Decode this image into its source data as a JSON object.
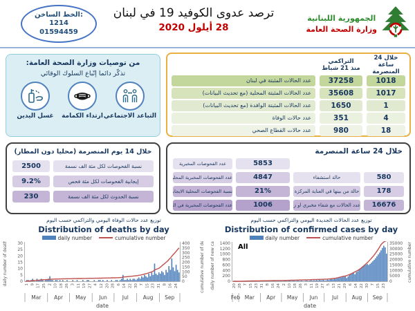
{
  "header": {
    "hotline": {
      "label": "الخط الساخن:",
      "number1": "1214",
      "number2": "01594459"
    },
    "title": "ترصد عدوى الكوفيد 19 في لبنان",
    "date": "28 أيلول 2020",
    "ministry": {
      "line1": "الجمهورية اللبنانية",
      "line2": "وزارة الصحة العامة"
    }
  },
  "recommendations": {
    "title": "من توصيات وزارة الصحة العامة:",
    "subtitle": "تذكّر دائما إتّباع السلوك الوقائي",
    "items": [
      {
        "icon": "hand-washing-icon",
        "label": "غسل اليدين"
      },
      {
        "icon": "face-mask-icon",
        "label": "ارتداء الكمامة"
      },
      {
        "icon": "social-distancing-icon",
        "label": "التباعد الاجتماعي"
      }
    ]
  },
  "main_table": {
    "col_24h_l1": "خلال 24 ساعة",
    "col_24h_l2": "المنصرمة",
    "col_cum_l1": "التراكمي",
    "col_cum_l2": "منذ 21 شباط",
    "rows": [
      {
        "label": "عدد الحالات المثبتة في لبنان",
        "cumulative": "37258",
        "last24": "1018"
      },
      {
        "label": "عدد الحالات المثبتة المحلية (مع تحديث البيانات)",
        "cumulative": "35608",
        "last24": "1017"
      },
      {
        "label": "عدد الحالات المثبتة الوافدة (مع تحديث البيانات)",
        "cumulative": "1650",
        "last24": "1"
      },
      {
        "label": "عدد حالات الوفاة",
        "cumulative": "351",
        "last24": "4"
      },
      {
        "label": "عدد حالات القطاع الصحي",
        "cumulative": "980",
        "last24": "18"
      }
    ]
  },
  "fortnight_box": {
    "title": "خلال 14 يوم المنصرمة (محليا دون المطار)",
    "rows": [
      {
        "value": "2500",
        "label": "نسبة الفحوصات لكل مئة الف نسمة"
      },
      {
        "value": "9.2%",
        "label": "إيجابية الفحوصات لكل مئة فحص"
      },
      {
        "value": "230",
        "label": "نسبة الحدوث لكل مئة الف نسمة"
      }
    ]
  },
  "day_box": {
    "title": "خلال 24 ساعة المنصرمة",
    "left_rows": [
      {
        "label": "عدد الفحوصات المخبرية",
        "value": "5853"
      },
      {
        "label": "عدد الفحوصات المخبرية المحلية",
        "value": "4847"
      },
      {
        "label": "نسبة الفحوصات المحلية الايجابية",
        "value": "21%"
      },
      {
        "label": "عدد الفحوصات المخبرية في المطار",
        "value": "1006"
      }
    ],
    "right_rows": [
      {
        "label": "حالة استشفاء",
        "value": "580"
      },
      {
        "label": "حالة من بينها في العناية المركزة",
        "value": "178"
      },
      {
        "label": "عدد الحالات مع شفاء مخبري او زمني",
        "value": "16676"
      }
    ]
  },
  "chart_data": [
    {
      "type": "bar",
      "title_ar": "توزيع عدد حالات الوفاة اليومي والتراكمي حسب اليوم",
      "title_en": "Distribution of deaths by day",
      "legend": [
        "daily number",
        "cumulative number"
      ],
      "ylabel_left": "daily number of deaths",
      "ylabel_right": "cumulative number of deaths",
      "xlabel": "date",
      "ylim_left": [
        0,
        30
      ],
      "ystep_left": 5,
      "ylim_right": [
        0,
        400
      ],
      "ystep_right": 50,
      "months": [
        "Mar",
        "Apr",
        "May",
        "Jun",
        "Jul",
        "Aug",
        "Sep"
      ],
      "month_weights": [
        31,
        30,
        31,
        30,
        31,
        31,
        28
      ],
      "day_ticks": [
        "1",
        "9",
        "17",
        "25",
        "2",
        "10",
        "18",
        "26",
        "3",
        "11",
        "19",
        "27",
        "4",
        "12",
        "20",
        "28",
        "6",
        "14",
        "22",
        "30",
        "7",
        "15",
        "23",
        "31",
        "8",
        "16",
        "24"
      ],
      "daily": [
        0,
        1,
        1,
        0,
        1,
        2,
        1,
        0,
        2,
        1,
        1,
        2,
        1,
        0,
        1,
        1,
        2,
        4,
        1,
        1,
        0,
        1,
        1,
        0,
        1,
        0,
        1,
        0,
        0,
        1,
        0,
        0,
        0,
        1,
        0,
        0,
        1,
        0,
        0,
        0,
        1,
        0,
        0,
        1,
        1,
        0,
        0,
        0,
        1,
        0,
        0,
        1,
        1,
        0,
        1,
        0,
        0,
        1,
        0,
        0,
        1,
        0,
        0,
        1,
        1,
        0,
        1,
        2,
        5,
        1,
        1,
        2,
        1,
        2,
        1,
        2,
        2,
        1,
        2,
        3,
        2,
        4,
        3,
        5,
        4,
        3,
        6,
        4,
        7,
        5,
        14,
        6,
        5,
        7,
        6,
        8,
        7,
        5,
        9,
        7,
        12,
        9,
        18,
        11,
        8,
        13,
        9,
        7
      ],
      "cumulative": [
        1,
        2,
        3,
        4,
        5,
        7,
        8,
        9,
        11,
        12,
        13,
        15,
        16,
        16,
        17,
        18,
        19,
        21,
        22,
        23,
        23,
        24,
        24,
        24,
        25,
        25,
        26,
        26,
        26,
        27,
        27,
        27,
        27,
        28,
        28,
        28,
        29,
        29,
        29,
        29,
        30,
        30,
        30,
        31,
        31,
        31,
        31,
        31,
        32,
        32,
        32,
        33,
        33,
        33,
        34,
        34,
        34,
        35,
        35,
        35,
        36,
        36,
        36,
        37,
        38,
        38,
        39,
        41,
        45,
        46,
        47,
        49,
        50,
        52,
        53,
        55,
        57,
        58,
        60,
        63,
        65,
        69,
        72,
        77,
        81,
        84,
        90,
        94,
        101,
        106,
        120,
        126,
        131,
        138,
        150,
        163,
        176,
        187,
        201,
        214,
        230,
        245,
        266,
        283,
        298,
        317,
        335,
        351
      ]
    },
    {
      "type": "bar",
      "title_ar": "توزيع عدد الحالات الجديدة اليومي والتراكمي حسب اليوم",
      "title_en": "Distribution of confirmed cases by day",
      "annotation": "All",
      "legend": [
        "daily number",
        "cumulative number"
      ],
      "ylabel_left": "daily number of new cases",
      "ylabel_right": "cumulative number",
      "xlabel": "date",
      "ylim_left": [
        0,
        1400
      ],
      "ystep_left": 200,
      "ylim_right": [
        0,
        35000
      ],
      "ystep_right": 5000,
      "months": [
        "Feb",
        "Mar",
        "Apr",
        "May",
        "Jun",
        "Jul",
        "Aug",
        "Sep"
      ],
      "month_weights": [
        9,
        31,
        30,
        31,
        30,
        31,
        31,
        28
      ],
      "day_ticks": [
        "20",
        "28",
        "7",
        "15",
        "23",
        "31",
        "8",
        "16",
        "24",
        "2",
        "10",
        "18",
        "26",
        "3",
        "11",
        "19",
        "27",
        "5",
        "13",
        "21",
        "29",
        "6",
        "14",
        "22",
        "30",
        "7",
        "15",
        "23"
      ],
      "daily": [
        1,
        2,
        2,
        3,
        2,
        4,
        6,
        9,
        11,
        13,
        15,
        12,
        14,
        10,
        12,
        9,
        11,
        8,
        10,
        7,
        9,
        8,
        10,
        6,
        9,
        12,
        8,
        10,
        7,
        9,
        11,
        8,
        6,
        9,
        7,
        10,
        6,
        9,
        26,
        12,
        8,
        30,
        14,
        10,
        25,
        18,
        12,
        35,
        20,
        15,
        28,
        11,
        10,
        20,
        30,
        15,
        25,
        40,
        20,
        35,
        25,
        45,
        30,
        50,
        38,
        42,
        55,
        25,
        35,
        60,
        45,
        80,
        95,
        70,
        110,
        90,
        132,
        120,
        155,
        140,
        175,
        168,
        182,
        120,
        180,
        230,
        255,
        290,
        310,
        255,
        340,
        365,
        420,
        455,
        510,
        560,
        580,
        610,
        640,
        600,
        640,
        690,
        740,
        790,
        850,
        920,
        990,
        1060,
        1140,
        1230,
        1310,
        1250,
        1018
      ],
      "cumulative": [
        2,
        8,
        15,
        25,
        40,
        60,
        90,
        120,
        150,
        180,
        210,
        240,
        265,
        290,
        310,
        330,
        350,
        370,
        390,
        410,
        440,
        460,
        480,
        500,
        520,
        540,
        560,
        580,
        600,
        620,
        640,
        660,
        680,
        700,
        715,
        725,
        740,
        760,
        790,
        820,
        850,
        890,
        930,
        960,
        990,
        1020,
        1060,
        1100,
        1140,
        1180,
        1210,
        1220,
        1250,
        1290,
        1330,
        1380,
        1430,
        1480,
        1530,
        1580,
        1620,
        1660,
        1700,
        1730,
        1760,
        1790,
        1820,
        1880,
        1950,
        2050,
        2150,
        2280,
        2420,
        2580,
        2750,
        2950,
        3200,
        3500,
        3800,
        4100,
        4450,
        4700,
        4880,
        5300,
        5800,
        6300,
        6900,
        7500,
        8100,
        8700,
        9400,
        10100,
        10900,
        11800,
        12800,
        13900,
        15000,
        16100,
        17300,
        18600,
        19900,
        21300,
        22800,
        24400,
        26100,
        27900,
        29800,
        31800,
        33900,
        35200,
        36240,
        36900,
        37258
      ]
    }
  ]
}
